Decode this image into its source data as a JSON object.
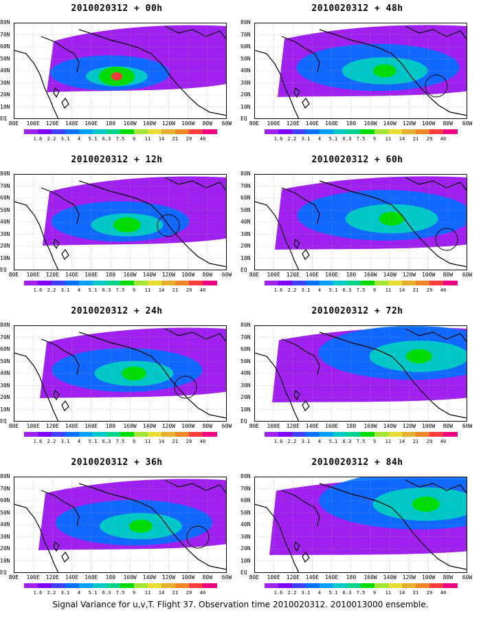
{
  "panels": [
    {
      "title": "2010020312 + 00h",
      "intensity": 0.3,
      "peak": 0.9,
      "peak_loc": [
        150,
        78
      ],
      "circle": null
    },
    {
      "title": "2010020312 + 12h",
      "intensity": 0.45,
      "peak": 0.6,
      "peak_loc": [
        165,
        74
      ],
      "circle": [
        225,
        75
      ]
    },
    {
      "title": "2010020312 + 24h",
      "intensity": 0.55,
      "peak": 0.5,
      "peak_loc": [
        175,
        70
      ],
      "circle": [
        250,
        90
      ]
    },
    {
      "title": "2010020312 + 36h",
      "intensity": 0.6,
      "peak": 0.45,
      "peak_loc": [
        185,
        72
      ],
      "circle": [
        268,
        88
      ]
    },
    {
      "title": "2010020312 + 48h",
      "intensity": 0.65,
      "peak": 0.45,
      "peak_loc": [
        190,
        70
      ],
      "circle": [
        265,
        92
      ]
    },
    {
      "title": "2010020312 + 60h",
      "intensity": 0.75,
      "peak": 0.5,
      "peak_loc": [
        200,
        65
      ],
      "circle": [
        280,
        95
      ]
    },
    {
      "title": "2010020312 + 72h",
      "intensity": 0.85,
      "peak": 0.55,
      "peak_loc": [
        240,
        45
      ],
      "circle": null
    },
    {
      "title": "2010020312 + 84h",
      "intensity": 0.95,
      "peak": 0.6,
      "peak_loc": [
        250,
        40
      ],
      "circle": null
    }
  ],
  "lat_labels": [
    "80N",
    "70N",
    "60N",
    "50N",
    "40N",
    "30N",
    "20N",
    "10N",
    "EQ"
  ],
  "lon_labels": [
    "80E",
    "100E",
    "120E",
    "140E",
    "160E",
    "180",
    "160W",
    "140W",
    "120W",
    "100W",
    "80W",
    "60W"
  ],
  "colorbar": {
    "values": [
      "1.6",
      "2.2",
      "3.1",
      "4",
      "5.1",
      "6.3",
      "7.5",
      "9",
      "11",
      "14",
      "21",
      "29",
      "40"
    ],
    "colors": [
      "#a020f0",
      "#7f00ff",
      "#3f3fff",
      "#0070ff",
      "#00a0ff",
      "#00c8c8",
      "#00d28c",
      "#00dc00",
      "#a0e632",
      "#e6dc32",
      "#e6af2d",
      "#f08228",
      "#fa3c3c",
      "#f00082"
    ]
  },
  "footer": "Signal Variance for u,v,T. Flight 37. Observation time 2010020312. 2010013000 ensemble."
}
